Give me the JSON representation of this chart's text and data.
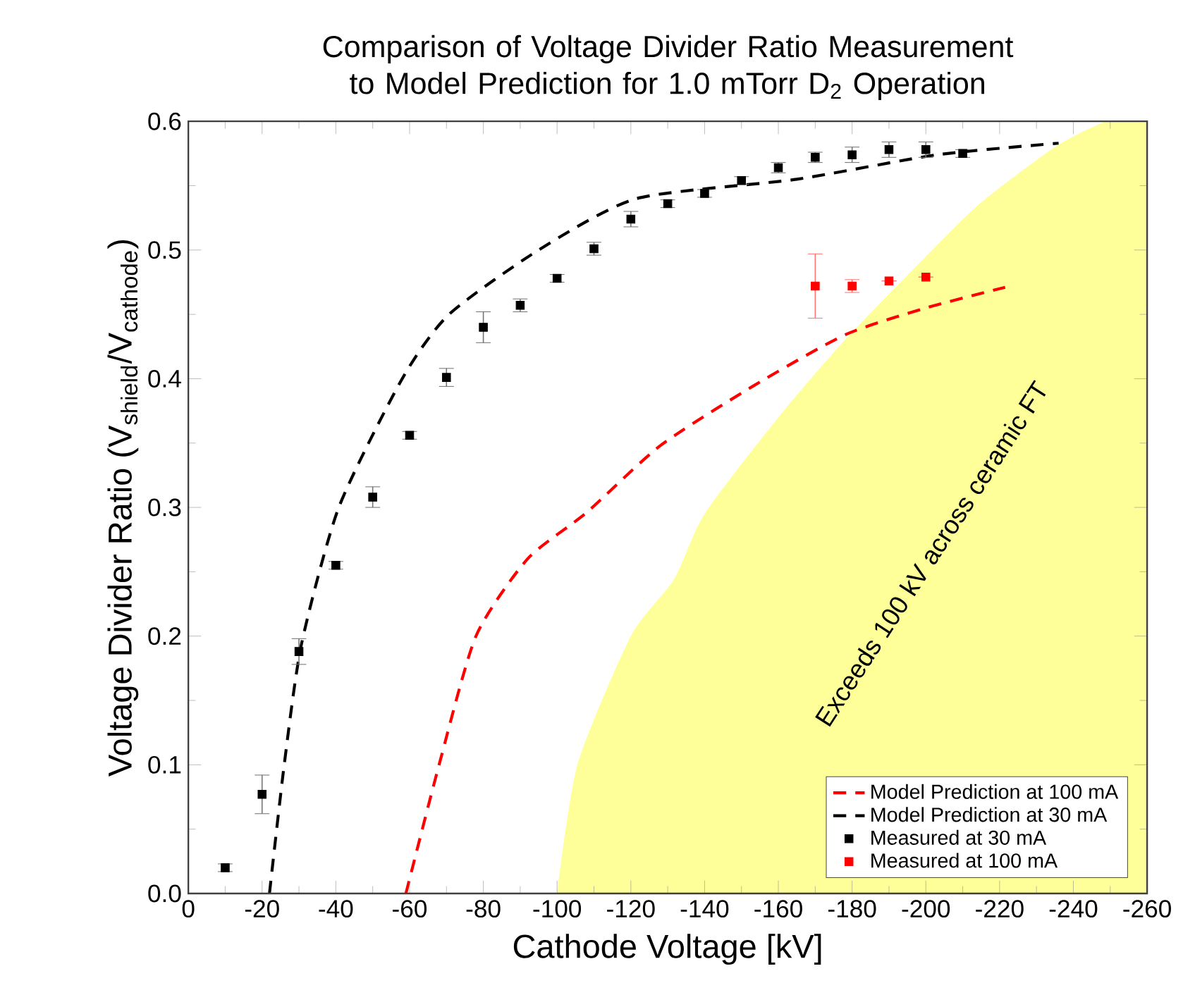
{
  "chart_data": {
    "type": "scatter",
    "title": "Comparison of Voltage Divider Ratio Measurement to Model Prediction for 1.0 mTorr D$_{2}$ Operation",
    "xlabel": "Cathode Voltage [kV]",
    "ylabel": "Voltage Divider Ratio (V$_{shield}$/V$_{cathode}$)",
    "annotations": [
      "Exceeds 100 kV across ceramic FT"
    ],
    "xlim": [
      0,
      -260
    ],
    "xticks": [
      0,
      -20,
      -40,
      -60,
      -80,
      -100,
      -120,
      -140,
      -160,
      -180,
      -200,
      -220,
      -240,
      -260
    ],
    "ylim": [
      0,
      0.6
    ],
    "yticks": [
      {
        "value": 0,
        "label": "0.0"
      },
      {
        "value": 0.1,
        "label": "0.1"
      },
      {
        "value": 0.2,
        "label": "0.2"
      },
      {
        "value": 0.3,
        "label": "0.3"
      },
      {
        "value": 0.4,
        "label": "0.4"
      },
      {
        "value": 0.5,
        "label": "0.5"
      },
      {
        "value": 0.6,
        "label": "0.6"
      }
    ],
    "legend": "bottom right",
    "series": [
      {
        "type": "area",
        "color": "#ffff99",
        "x": [
          -100,
          -105.5,
          -120,
          -131.7,
          -140,
          -160,
          -178,
          -200,
          -215,
          -235,
          -249,
          -260
        ],
        "values": [
          0,
          0.1,
          0.2,
          0.244,
          0.295,
          0.37,
          0.43,
          0.495,
          0.537,
          0.58,
          0.6,
          0.6
        ]
      },
      {
        "type": "line",
        "name": "Model Prediction at 100 mA",
        "color": "#ff0000",
        "marker": "none",
        "line_style": "dashed",
        "x": [
          -59,
          -68,
          -78,
          -92,
          -108,
          -128,
          -153,
          -178,
          -200,
          -221.5
        ],
        "values": [
          0,
          0.1,
          0.2,
          0.26,
          0.296,
          0.348,
          0.394,
          0.434,
          0.455,
          0.471
        ]
      },
      {
        "type": "line",
        "name": "Model Prediction at 30 mA",
        "color": "#000000",
        "marker": "none",
        "line_style": "dashed",
        "x": [
          -22,
          -26,
          -30.7,
          -40.8,
          -58,
          -70.7,
          -95,
          -121.6,
          -165,
          -203,
          -236
        ],
        "values": [
          0,
          0.1,
          0.194,
          0.3,
          0.4,
          0.45,
          0.5,
          0.54,
          0.555,
          0.574,
          0.583
        ]
      },
      {
        "name": "Measured at 30 mA",
        "color": "#000000",
        "marker": "square",
        "x": [
          -10,
          -20,
          -30,
          -40,
          -50,
          -60,
          -70,
          -80,
          -90,
          -100,
          -110,
          -120,
          -130,
          -140,
          -150,
          -160,
          -170,
          -180,
          -190,
          -200,
          -210
        ],
        "values": [
          0.02,
          0.077,
          0.188,
          0.255,
          0.308,
          0.356,
          0.401,
          0.44,
          0.457,
          0.478,
          0.501,
          0.524,
          0.536,
          0.544,
          0.554,
          0.564,
          0.572,
          0.574,
          0.578,
          0.578,
          0.575
        ],
        "errors": [
          0.003,
          0.015,
          0.01,
          0.003,
          0.008,
          0.003,
          0.007,
          0.012,
          0.005,
          0.003,
          0.005,
          0.006,
          0.003,
          0.003,
          0.003,
          0.004,
          0.004,
          0.006,
          0.006,
          0.006,
          0.003
        ]
      },
      {
        "name": "Measured at 100 mA",
        "color": "#ff0000",
        "marker": "square",
        "x": [
          -170,
          -180,
          -190,
          -200
        ],
        "values": [
          0.472,
          0.472,
          0.476,
          0.479
        ],
        "errors": [
          0.025,
          0.005,
          null,
          null
        ]
      }
    ]
  }
}
